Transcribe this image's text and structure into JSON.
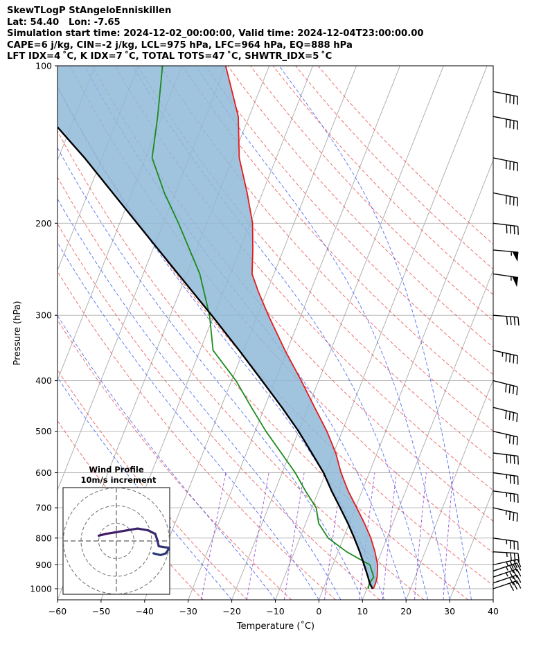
{
  "header": {
    "line1": "SkewTLogP StAngeloEnniskillen",
    "line2": "Lat: 54.40   Lon: -7.65",
    "line3": "Simulation start time: 2024-12-02_00:00:00, Valid time: 2024-12-04T23:00:00.00",
    "line4": "CAPE=6 j/kg, CIN=-2 j/kg, LCL=975 hPa, LFC=964 hPa, EQ=888 hPa",
    "line5": "LFT IDX=4 ˚C, K IDX=7 ˚C, TOTAL TOTS=47 ˚C, SHWTR_IDX=5 ˚C"
  },
  "chart_data": {
    "type": "skewt",
    "xlabel": "Temperature ($^\\circ$C)",
    "xlabel_display": "Temperature (˚C)",
    "ylabel": "Pressure (hPa)",
    "xlim": [
      -60,
      40
    ],
    "ylim": [
      1050,
      100
    ],
    "x_ticks": [
      -60,
      -50,
      -40,
      -30,
      -20,
      -10,
      0,
      10,
      20,
      30,
      40
    ],
    "x_tick_labels": [
      "−60",
      "−50",
      "−40",
      "−30",
      "−20",
      "−10",
      "0",
      "10",
      "20",
      "30",
      "40"
    ],
    "y_ticks": [
      100,
      200,
      300,
      400,
      500,
      600,
      700,
      800,
      900,
      1000
    ],
    "y_tick_labels": [
      "100",
      "200",
      "300",
      "400",
      "500",
      "600",
      "700",
      "800",
      "900",
      "1000"
    ],
    "colors": {
      "temperature": "#e41a1c",
      "dewpoint": "#1a8a1a",
      "parcel": "#000000",
      "cape_fill": "#8fb8d8",
      "dry_adiabat": "#e84040",
      "moist_adiabat": "#3050ee",
      "mixing_ratio": "#8e3bcc",
      "isotherm": "#a8a8a8",
      "hodograph": "#3b1e6e"
    },
    "temperature_profile": [
      {
        "p": 1000,
        "t": 11.5
      },
      {
        "p": 975,
        "t": 11.5
      },
      {
        "p": 950,
        "t": 11.3
      },
      {
        "p": 900,
        "t": 10.3
      },
      {
        "p": 850,
        "t": 8.5
      },
      {
        "p": 800,
        "t": 6.3
      },
      {
        "p": 750,
        "t": 3.5
      },
      {
        "p": 700,
        "t": 0.3
      },
      {
        "p": 650,
        "t": -3.2
      },
      {
        "p": 600,
        "t": -6.5
      },
      {
        "p": 550,
        "t": -9.5
      },
      {
        "p": 500,
        "t": -13.5
      },
      {
        "p": 450,
        "t": -18.5
      },
      {
        "p": 400,
        "t": -24.0
      },
      {
        "p": 350,
        "t": -30.5
      },
      {
        "p": 300,
        "t": -37.5
      },
      {
        "p": 270,
        "t": -42.0
      },
      {
        "p": 250,
        "t": -45.0
      },
      {
        "p": 225,
        "t": -47.0
      },
      {
        "p": 200,
        "t": -49.5
      },
      {
        "p": 175,
        "t": -53.5
      },
      {
        "p": 150,
        "t": -58.5
      },
      {
        "p": 125,
        "t": -62.5
      },
      {
        "p": 100,
        "t": -70.0
      }
    ],
    "dewpoint_profile": [
      {
        "p": 1000,
        "t": 10.3
      },
      {
        "p": 975,
        "t": 10.1
      },
      {
        "p": 950,
        "t": 10.5
      },
      {
        "p": 900,
        "t": 8.5
      },
      {
        "p": 850,
        "t": 2.0
      },
      {
        "p": 800,
        "t": -3.5
      },
      {
        "p": 750,
        "t": -7.0
      },
      {
        "p": 700,
        "t": -9.0
      },
      {
        "p": 650,
        "t": -13.0
      },
      {
        "p": 600,
        "t": -17.0
      },
      {
        "p": 550,
        "t": -22.0
      },
      {
        "p": 500,
        "t": -27.5
      },
      {
        "p": 450,
        "t": -33.0
      },
      {
        "p": 400,
        "t": -39.0
      },
      {
        "p": 350,
        "t": -47.0
      },
      {
        "p": 300,
        "t": -51.0
      },
      {
        "p": 250,
        "t": -57.0
      },
      {
        "p": 200,
        "t": -66.5
      },
      {
        "p": 175,
        "t": -72.5
      },
      {
        "p": 150,
        "t": -78.5
      },
      {
        "p": 125,
        "t": -81.0
      },
      {
        "p": 100,
        "t": -84.5
      }
    ],
    "parcel_profile": [
      {
        "p": 1000,
        "t": 11.3
      },
      {
        "p": 975,
        "t": 10.1
      },
      {
        "p": 950,
        "t": 9.2
      },
      {
        "p": 900,
        "t": 7.2
      },
      {
        "p": 850,
        "t": 5.0
      },
      {
        "p": 800,
        "t": 2.5
      },
      {
        "p": 750,
        "t": -0.3
      },
      {
        "p": 700,
        "t": -3.5
      },
      {
        "p": 650,
        "t": -7.0
      },
      {
        "p": 600,
        "t": -10.5
      },
      {
        "p": 550,
        "t": -15.0
      },
      {
        "p": 500,
        "t": -20.0
      },
      {
        "p": 450,
        "t": -26.0
      },
      {
        "p": 400,
        "t": -33.0
      },
      {
        "p": 350,
        "t": -41.0
      },
      {
        "p": 300,
        "t": -50.5
      },
      {
        "p": 250,
        "t": -62.0
      },
      {
        "p": 200,
        "t": -76.0
      },
      {
        "p": 150,
        "t": -94.0
      },
      {
        "p": 100,
        "t": -121.0
      }
    ],
    "dry_adiabats_C": [
      -30,
      -20,
      -10,
      0,
      10,
      20,
      30,
      40,
      50,
      60,
      70,
      80,
      90,
      100,
      110,
      120,
      130,
      140,
      150,
      160
    ],
    "moist_adiabats_C": [
      -20,
      -10,
      0,
      5,
      10,
      15,
      20,
      25,
      30,
      35
    ],
    "mixing_ratio_lines_gkg": [
      0.4,
      1,
      2,
      4,
      7,
      10,
      16,
      24
    ],
    "wind_barbs": [
      {
        "p": 1000,
        "u": -30,
        "v": -10
      },
      {
        "p": 975,
        "u": -30,
        "v": -10
      },
      {
        "p": 950,
        "u": -35,
        "v": -12
      },
      {
        "p": 925,
        "u": -35,
        "v": -12
      },
      {
        "p": 900,
        "u": -35,
        "v": -8
      },
      {
        "p": 850,
        "u": -35,
        "v": 2
      },
      {
        "p": 800,
        "u": -35,
        "v": 5
      },
      {
        "p": 700,
        "u": -35,
        "v": 8
      },
      {
        "p": 650,
        "u": -35,
        "v": 5
      },
      {
        "p": 600,
        "u": -35,
        "v": 5
      },
      {
        "p": 550,
        "u": -40,
        "v": 5
      },
      {
        "p": 500,
        "u": -35,
        "v": 8
      },
      {
        "p": 450,
        "u": -40,
        "v": 10
      },
      {
        "p": 400,
        "u": -40,
        "v": 10
      },
      {
        "p": 350,
        "u": -45,
        "v": 10
      },
      {
        "p": 300,
        "u": -40,
        "v": 3
      },
      {
        "p": 250,
        "u": -55,
        "v": 8
      },
      {
        "p": 225,
        "u": -55,
        "v": 5
      },
      {
        "p": 200,
        "u": -40,
        "v": 5
      },
      {
        "p": 175,
        "u": -40,
        "v": 8
      },
      {
        "p": 150,
        "u": -40,
        "v": 8
      },
      {
        "p": 125,
        "u": -40,
        "v": 8
      },
      {
        "p": 112,
        "u": -40,
        "v": 8
      }
    ],
    "hodograph": {
      "title": "Wind Profile",
      "subtitle": "10m/s increment",
      "rings_ms": [
        10,
        20,
        30
      ],
      "ring_step_ms": 10,
      "trace": [
        {
          "u": 21,
          "v": -7
        },
        {
          "u": 25,
          "v": -8
        },
        {
          "u": 28,
          "v": -7
        },
        {
          "u": 30,
          "v": -4
        },
        {
          "u": 24,
          "v": -3
        },
        {
          "u": 23,
          "v": 1
        },
        {
          "u": 22,
          "v": 4
        },
        {
          "u": 18,
          "v": 6
        },
        {
          "u": 12,
          "v": 7
        },
        {
          "u": 6,
          "v": 6
        },
        {
          "u": 0,
          "v": 5
        },
        {
          "u": -6,
          "v": 4
        },
        {
          "u": -10,
          "v": 3
        }
      ]
    }
  }
}
